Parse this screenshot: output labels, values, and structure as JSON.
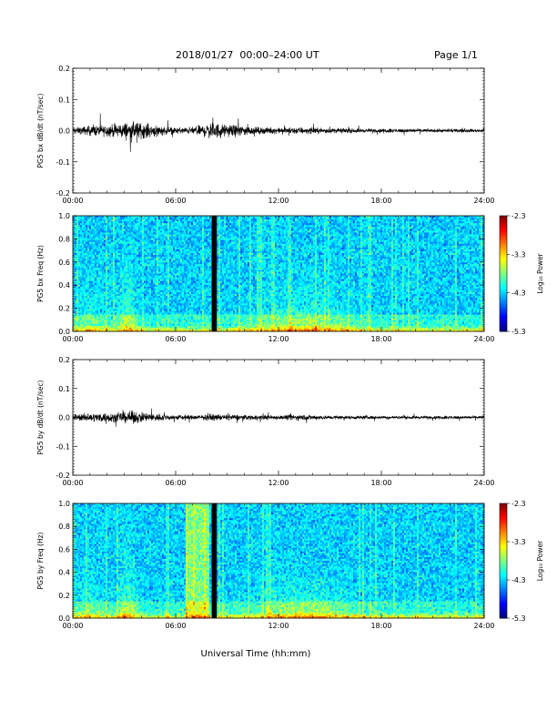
{
  "header": {
    "title": "2018/01/27  00:00–24:00 UT",
    "page": "Page 1/1"
  },
  "xlabel": "Universal Time (hh:mm)",
  "time_ticks": [
    "00:00",
    "06:00",
    "12:00",
    "18:00",
    "24:00"
  ],
  "colorbar": {
    "label": "Log₁₀ Power",
    "ticks": [
      "-2.3",
      "-3.3",
      "-4.3",
      "-5.3"
    ],
    "range": [
      -5.3,
      -2.3
    ]
  },
  "chart_data": [
    {
      "type": "line",
      "ylabel": "PG5 bx dB/dt (nT/sec)",
      "ylim": [
        -0.2,
        0.2
      ],
      "yticks": [
        "0.2",
        "0.1",
        "0.0",
        "-0.1",
        "-0.2"
      ],
      "xlim": [
        0,
        24
      ],
      "series": [
        {
          "x": [
            0,
            0.5,
            1,
            1.5,
            2,
            2.5,
            3,
            3.5,
            4,
            4.5,
            5,
            5.5,
            6,
            6.5,
            7,
            7.5,
            8,
            8.5,
            9,
            9.5,
            10,
            10.5,
            11,
            11.5,
            12,
            12.5,
            13,
            13.5,
            14,
            14.5,
            15,
            15.5,
            16,
            16.5,
            17,
            17.5,
            18,
            18.5,
            19,
            19.5,
            20,
            20.5,
            21,
            21.5,
            22,
            22.5,
            23,
            23.5,
            24
          ],
          "envelope": [
            0.012,
            0.015,
            0.018,
            0.02,
            0.022,
            0.025,
            0.03,
            0.033,
            0.03,
            0.025,
            0.02,
            0.015,
            0.012,
            0.012,
            0.015,
            0.02,
            0.03,
            0.028,
            0.02,
            0.022,
            0.02,
            0.015,
            0.012,
            0.012,
            0.01,
            0.012,
            0.013,
            0.012,
            0.012,
            0.01,
            0.009,
            0.009,
            0.008,
            0.008,
            0.007,
            0.007,
            0.007,
            0.007,
            0.007,
            0.007,
            0.007,
            0.006,
            0.006,
            0.006,
            0.006,
            0.006,
            0.006,
            0.006,
            0.006
          ]
        }
      ]
    },
    {
      "type": "heatmap",
      "ylabel": "PG5 bx Freq (Hz)",
      "ylim": [
        0,
        1
      ],
      "yticks": [
        "1.0",
        "0.8",
        "0.6",
        "0.4",
        "0.2",
        "0.0"
      ],
      "xlim": [
        0,
        24
      ],
      "data_gap_hours": [
        8.1,
        8.4
      ]
    },
    {
      "type": "line",
      "ylabel": "PG5 by dB/dt (nT/sec)",
      "ylim": [
        -0.2,
        0.2
      ],
      "yticks": [
        "0.2",
        "0.1",
        "0.0",
        "-0.1",
        "-0.2"
      ],
      "xlim": [
        0,
        24
      ],
      "series": [
        {
          "x": [
            0,
            0.5,
            1,
            1.5,
            2,
            2.5,
            3,
            3.5,
            4,
            4.5,
            5,
            5.5,
            6,
            6.5,
            7,
            7.5,
            8,
            8.5,
            9,
            9.5,
            10,
            10.5,
            11,
            11.5,
            12,
            12.5,
            13,
            13.5,
            14,
            14.5,
            15,
            15.5,
            16,
            16.5,
            17,
            17.5,
            18,
            18.5,
            19,
            19.5,
            20,
            20.5,
            21,
            21.5,
            22,
            22.5,
            23,
            23.5,
            24
          ],
          "envelope": [
            0.012,
            0.015,
            0.016,
            0.018,
            0.02,
            0.018,
            0.022,
            0.025,
            0.022,
            0.018,
            0.015,
            0.012,
            0.01,
            0.01,
            0.01,
            0.01,
            0.012,
            0.012,
            0.01,
            0.012,
            0.01,
            0.01,
            0.01,
            0.01,
            0.008,
            0.01,
            0.012,
            0.012,
            0.01,
            0.009,
            0.008,
            0.008,
            0.007,
            0.007,
            0.007,
            0.007,
            0.006,
            0.006,
            0.006,
            0.006,
            0.006,
            0.006,
            0.006,
            0.006,
            0.006,
            0.006,
            0.006,
            0.006,
            0.006
          ]
        }
      ]
    },
    {
      "type": "heatmap",
      "ylabel": "PG5 by Freq (Hz)",
      "ylim": [
        0,
        1
      ],
      "yticks": [
        "1.0",
        "0.8",
        "0.6",
        "0.4",
        "0.2",
        "0.0"
      ],
      "xlim": [
        0,
        24
      ],
      "data_gap_hours": [
        8.1,
        8.4
      ]
    }
  ]
}
